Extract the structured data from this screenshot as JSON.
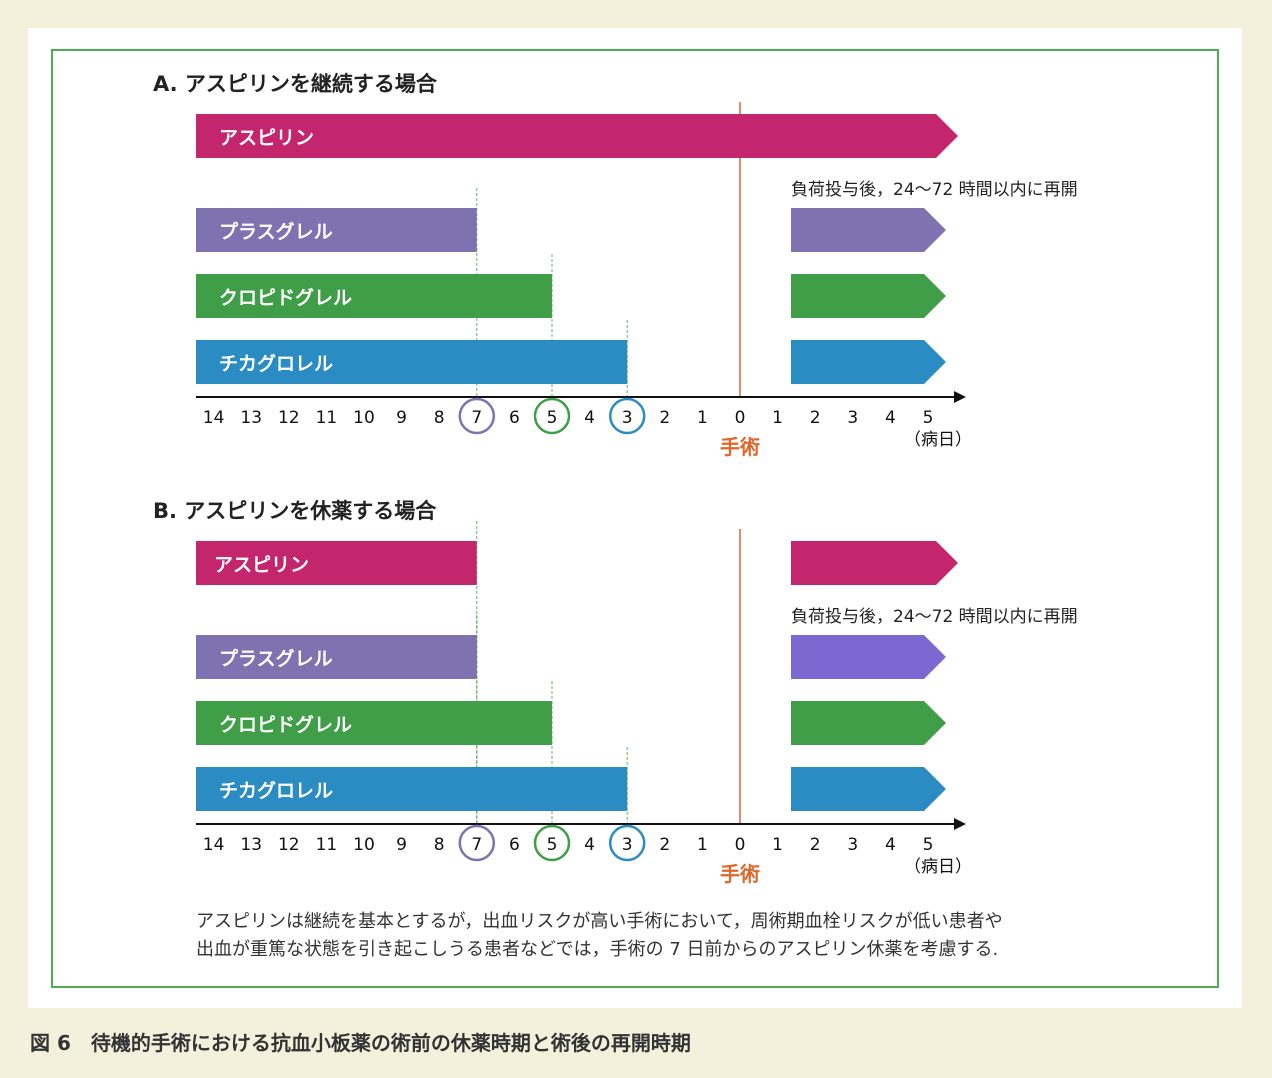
{
  "colors": {
    "aspirin": "#c4266d",
    "prasugrel": "#7f72b0",
    "prasugrel_resume_b": "#7b68d0",
    "clopidogrel": "#3f9e47",
    "ticagrelor": "#2b8bc3",
    "surgery": "#e0662a",
    "frame": "#4cae4f"
  },
  "axis": {
    "ticks_before": [
      "14",
      "13",
      "12",
      "11",
      "10",
      "9",
      "8",
      "7",
      "6",
      "5",
      "4",
      "3",
      "2",
      "1",
      "0"
    ],
    "ticks_after": [
      "1",
      "2",
      "3",
      "4",
      "5"
    ],
    "surgery_label": "手術",
    "unit_label": "（病日）",
    "circled": [
      {
        "day": 7,
        "drug": "prasugrel"
      },
      {
        "day": 5,
        "drug": "clopidogrel"
      },
      {
        "day": 3,
        "drug": "ticagrelor"
      }
    ]
  },
  "sections": [
    {
      "title": "A.  アスピリンを継続する場合",
      "resume_note": "負荷投与後，24〜72 時間以内に再開",
      "bars": [
        {
          "label": "アスピリン",
          "drug": "aspirin",
          "stop_days_before": 0,
          "continuous": true,
          "resume": true
        },
        {
          "label": "プラスグレル",
          "drug": "prasugrel",
          "stop_days_before": 7,
          "resume": true
        },
        {
          "label": "クロピドグレル",
          "drug": "clopidogrel",
          "stop_days_before": 5,
          "resume": true
        },
        {
          "label": "チカグロレル",
          "drug": "ticagrelor",
          "stop_days_before": 3,
          "resume": true
        }
      ]
    },
    {
      "title": "B.  アスピリンを休薬する場合",
      "resume_note": "負荷投与後，24〜72 時間以内に再開",
      "bars": [
        {
          "label": "アスピリン",
          "drug": "aspirin",
          "stop_days_before": 7,
          "resume": true
        },
        {
          "label": "プラスグレル",
          "drug": "prasugrel",
          "stop_days_before": 7,
          "resume": true,
          "resume_color": "prasugrel_resume_b"
        },
        {
          "label": "クロピドグレル",
          "drug": "clopidogrel",
          "stop_days_before": 5,
          "resume": true
        },
        {
          "label": "チカグロレル",
          "drug": "ticagrelor",
          "stop_days_before": 3,
          "resume": true
        }
      ]
    }
  ],
  "note": {
    "line1": "アスピリンは継続を基本とするが，出血リスクが高い手術において，周術期血栓リスクが低い患者や",
    "line2": "出血が重篤な状態を引き起こしうる患者などでは，手術の 7 日前からのアスピリン休薬を考慮する."
  },
  "caption": "図 6　待機的手術における抗血小板薬の術前の休薬時期と術後の再開時期"
}
